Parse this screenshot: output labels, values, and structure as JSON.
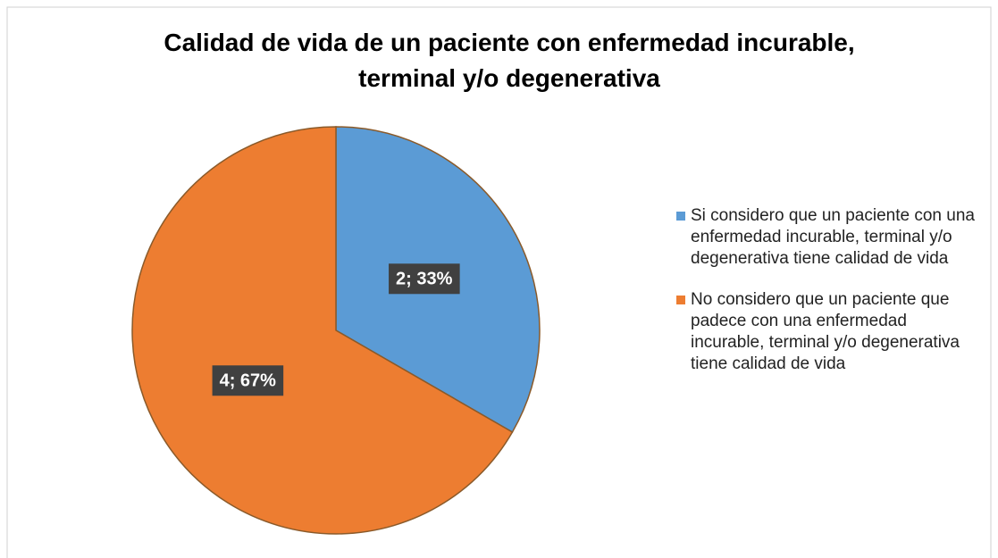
{
  "chart_data": {
    "type": "pie",
    "title": "Calidad de vida de un paciente con enfermedad incurable, terminal y/o degenerativa",
    "categories": [
      "Si considero que un paciente con una enfermedad incurable, terminal y/o degenerativa tiene calidad de vida",
      "No considero que un paciente que padece con una enfermedad incurable, terminal y/o degenerativa tiene calidad de vida"
    ],
    "values": [
      2,
      4
    ],
    "value_labels": [
      "2; 33%",
      "4; 67%"
    ],
    "colors": [
      "#5b9bd5",
      "#ed7d31"
    ],
    "legend": "right"
  }
}
